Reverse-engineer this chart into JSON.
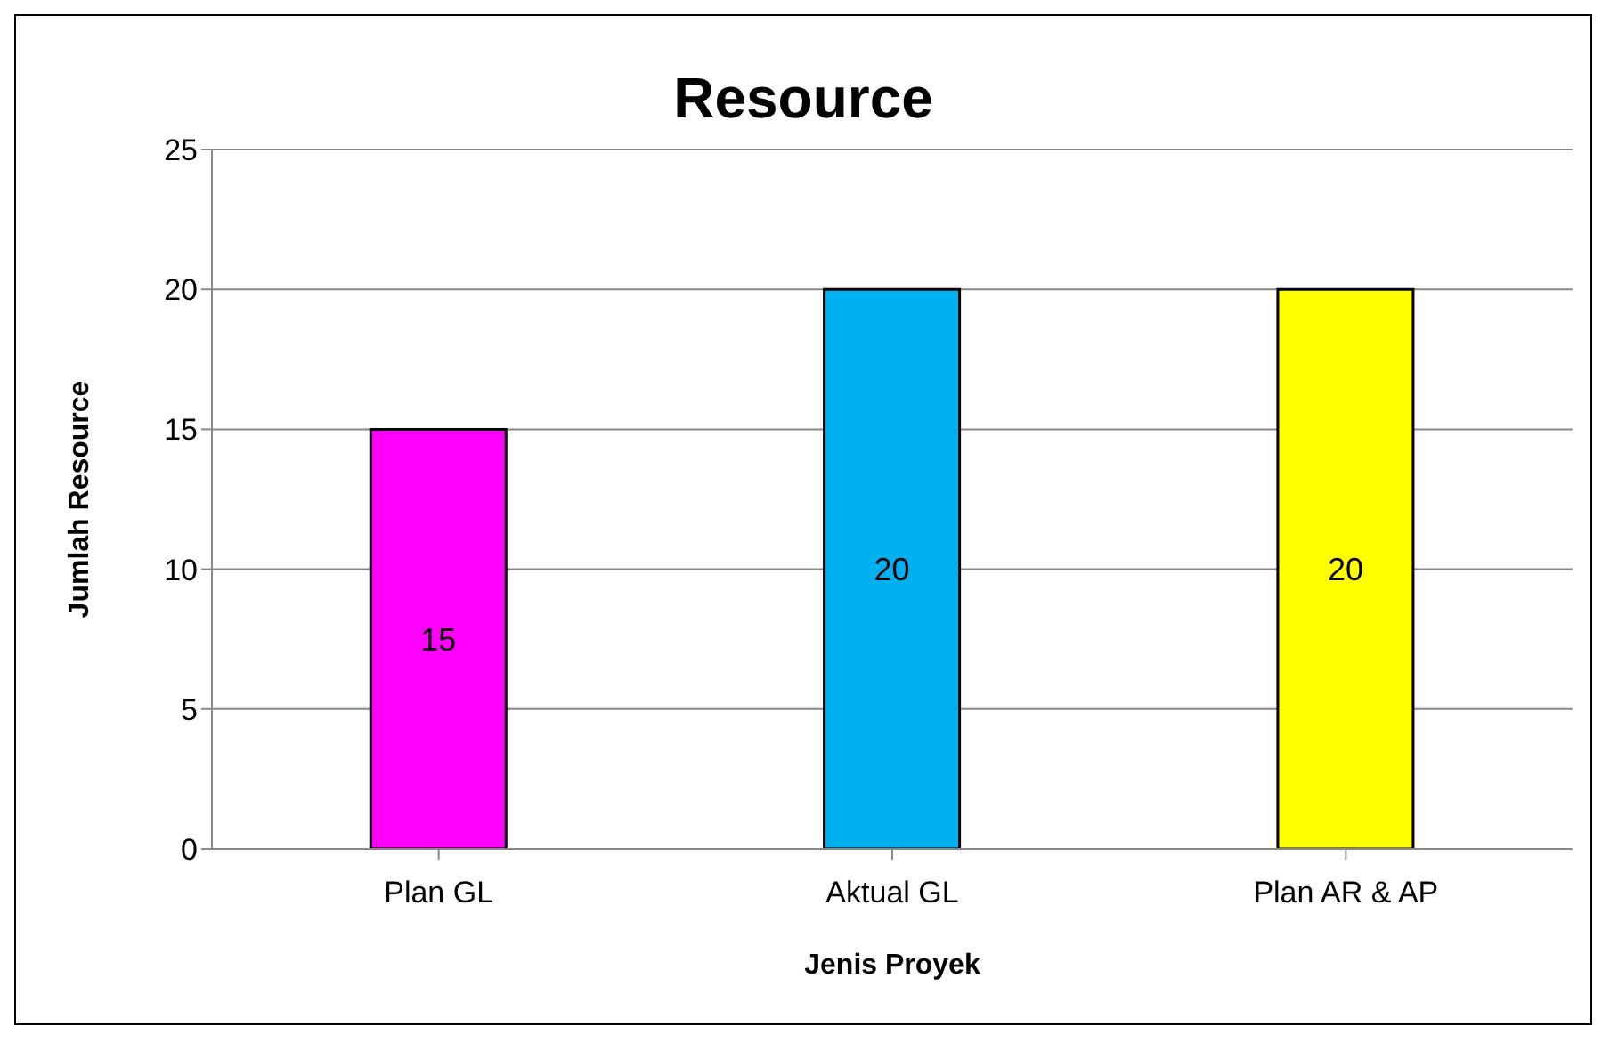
{
  "chart_data": {
    "type": "bar",
    "title": "Resource",
    "xlabel": "Jenis Proyek",
    "ylabel": "Jumlah Resource",
    "categories": [
      "Plan GL",
      "Aktual GL",
      "Plan AR & AP"
    ],
    "values": [
      15,
      20,
      20
    ],
    "colors": [
      "#ff00ff",
      "#00b0f0",
      "#ffff00"
    ],
    "ylim": [
      0,
      25
    ],
    "yticks": [
      0,
      5,
      10,
      15,
      20,
      25
    ],
    "grid": "y",
    "data_labels": true
  }
}
